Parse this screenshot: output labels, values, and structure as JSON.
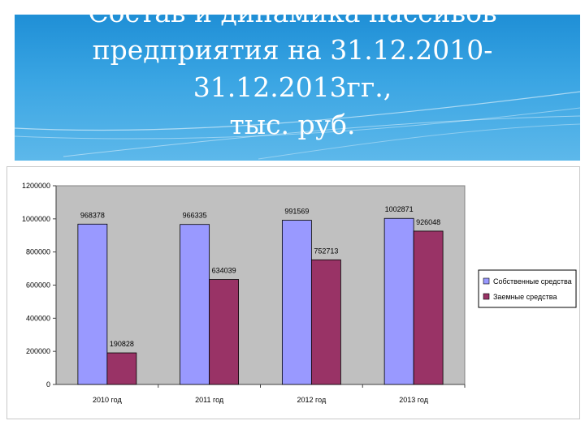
{
  "slide": {
    "title_line1": "Состав и динамика пассивов",
    "title_line2": "предприятия на 31.12.2010-31.12.2013гг.,",
    "title_line3": "тыс. руб."
  },
  "chart_data": {
    "type": "bar",
    "categories": [
      "2010 год",
      "2011 год",
      "2012 год",
      "2013 год"
    ],
    "series": [
      {
        "name": "Собственные средства",
        "values": [
          968378,
          966335,
          991569,
          1002871
        ],
        "color": "#9999ff"
      },
      {
        "name": "Заемные средства",
        "values": [
          190828,
          634039,
          752713,
          926048
        ],
        "color": "#993366"
      }
    ],
    "ylim": [
      0,
      1200000
    ],
    "yticks": [
      0,
      200000,
      400000,
      600000,
      800000,
      1000000,
      1200000
    ],
    "plot_background": "#c0c0c0",
    "grid": false,
    "legend_position": "right"
  }
}
